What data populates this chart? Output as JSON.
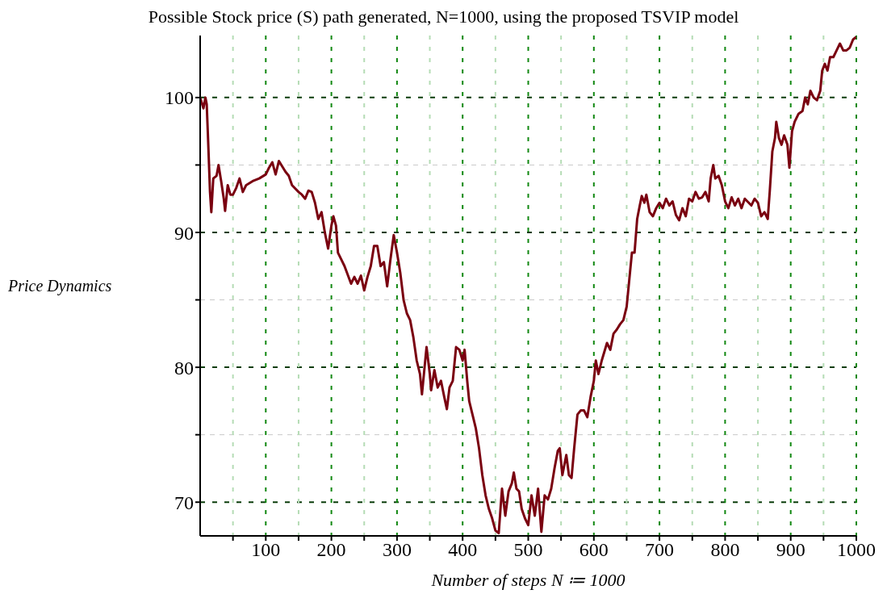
{
  "chart_data": {
    "type": "line",
    "title": "Possible  Stock price (S) path generated, N=1000, using the proposed TSVIP  model",
    "xlabel": "Number of steps N ≔ 1000",
    "ylabel": "Price  Dynamics",
    "x": [
      0,
      5,
      8,
      10,
      12,
      15,
      17,
      20,
      25,
      28,
      32,
      36,
      38,
      42,
      46,
      50,
      55,
      60,
      65,
      70,
      80,
      90,
      100,
      105,
      110,
      115,
      120,
      130,
      135,
      140,
      150,
      155,
      160,
      165,
      170,
      175,
      180,
      185,
      190,
      195,
      200,
      203,
      207,
      210,
      215,
      220,
      230,
      235,
      240,
      245,
      250,
      255,
      260,
      265,
      270,
      275,
      280,
      285,
      290,
      295,
      300,
      305,
      310,
      315,
      320,
      325,
      330,
      335,
      338,
      342,
      345,
      350,
      352,
      357,
      362,
      367,
      372,
      376,
      380,
      385,
      390,
      395,
      400,
      403,
      407,
      410,
      415,
      420,
      425,
      430,
      435,
      440,
      445,
      450,
      455,
      460,
      465,
      470,
      475,
      478,
      482,
      486,
      490,
      495,
      500,
      505,
      510,
      515,
      520,
      525,
      530,
      535,
      540,
      545,
      548,
      552,
      558,
      562,
      566,
      570,
      575,
      580,
      585,
      590,
      595,
      600,
      603,
      607,
      612,
      620,
      625,
      630,
      635,
      640,
      645,
      650,
      655,
      658,
      662,
      666,
      670,
      673,
      677,
      680,
      685,
      690,
      695,
      700,
      705,
      710,
      715,
      720,
      725,
      730,
      735,
      740,
      745,
      750,
      755,
      760,
      765,
      770,
      775,
      778,
      782,
      785,
      790,
      795,
      800,
      805,
      810,
      815,
      820,
      825,
      830,
      840,
      845,
      850,
      855,
      860,
      865,
      868,
      872,
      876,
      878,
      882,
      886,
      890,
      895,
      898,
      902,
      906,
      912,
      918,
      922,
      926,
      930,
      935,
      940,
      945,
      948,
      952,
      956,
      960,
      965,
      970,
      975,
      980,
      985,
      990,
      995,
      1000
    ],
    "series": [
      {
        "color": "#7a0010",
        "values": [
          100,
          99.2,
          100,
          99.5,
          97,
          93,
          91.5,
          94,
          94.2,
          95,
          93.8,
          92.5,
          91.6,
          93.5,
          92.8,
          92.8,
          93.3,
          94,
          93,
          93.5,
          93.8,
          94,
          94.3,
          94.8,
          95.2,
          94.3,
          95.3,
          94.5,
          94.2,
          93.5,
          93,
          92.8,
          92.5,
          93.1,
          93,
          92.2,
          91,
          91.5,
          90,
          88.8,
          90.5,
          91.2,
          90.5,
          88.5,
          88,
          87.5,
          86.2,
          86.7,
          86.2,
          86.8,
          85.7,
          86.7,
          87.5,
          89,
          89,
          87.5,
          87.8,
          86,
          88,
          89.8,
          88.5,
          87,
          85,
          84,
          83.5,
          82.2,
          80.5,
          79.5,
          78,
          80,
          81.5,
          79.5,
          78.3,
          79.8,
          78.5,
          79,
          77.8,
          76.9,
          78.5,
          79,
          81.5,
          81.3,
          80.5,
          81.3,
          79,
          77.5,
          76.5,
          75.5,
          74,
          72,
          70.5,
          69.5,
          68.8,
          67.9,
          67.7,
          71,
          69,
          70.8,
          71.4,
          72.2,
          71,
          70.8,
          69.5,
          68.8,
          68.3,
          70.5,
          69,
          71,
          67.8,
          70.5,
          70.2,
          71,
          72.5,
          73.8,
          74,
          72,
          73.5,
          72,
          71.8,
          74,
          76.5,
          76.8,
          76.8,
          76.3,
          77.8,
          79,
          80.5,
          79.5,
          80.5,
          81.8,
          81.3,
          82.5,
          82.8,
          83.2,
          83.5,
          84.5,
          87,
          88.5,
          88.5,
          91,
          92,
          92.7,
          92.2,
          92.8,
          91.5,
          91.2,
          91.8,
          92.2,
          91.8,
          92.5,
          92,
          92.3,
          91.3,
          90.9,
          91.8,
          91.2,
          92.5,
          92.3,
          93,
          92.5,
          92.6,
          93,
          92.3,
          94,
          95,
          94,
          94.2,
          93.5,
          92.3,
          91.8,
          92.6,
          92,
          92.5,
          91.8,
          92.5,
          92,
          92.5,
          92.2,
          91.2,
          91.5,
          91,
          93,
          96,
          97,
          98.2,
          97,
          96.5,
          97.2,
          96.5,
          94.8,
          97.5,
          98.2,
          98.8,
          99,
          100,
          99.5,
          100.5,
          100,
          99.8,
          100.5,
          102,
          102.5,
          102,
          103,
          103,
          103.5,
          104,
          103.5,
          103.5,
          103.7,
          104.3,
          104.5
        ]
      }
    ],
    "xlim": [
      0,
      1000
    ],
    "xticks": [
      {
        "value": 50,
        "label": null
      },
      100,
      {
        "value": 150,
        "label": null
      },
      200,
      {
        "value": 250,
        "label": null
      },
      300,
      {
        "value": 350,
        "label": null
      },
      400,
      {
        "value": 450,
        "label": null
      },
      500,
      {
        "value": 550,
        "label": null
      },
      600,
      {
        "value": 650,
        "label": null
      },
      700,
      {
        "value": 750,
        "label": null
      },
      800,
      {
        "value": 850,
        "label": null
      },
      900,
      {
        "value": 950,
        "label": null
      },
      1000
    ],
    "ylim": [
      67.5,
      104.6
    ],
    "yticks": [
      70,
      {
        "value": 75,
        "label": null
      },
      80,
      {
        "value": 85,
        "label": null
      },
      90,
      {
        "value": 95,
        "label": null
      },
      100
    ],
    "grid": true,
    "marker": "none",
    "line_style": "solid"
  }
}
